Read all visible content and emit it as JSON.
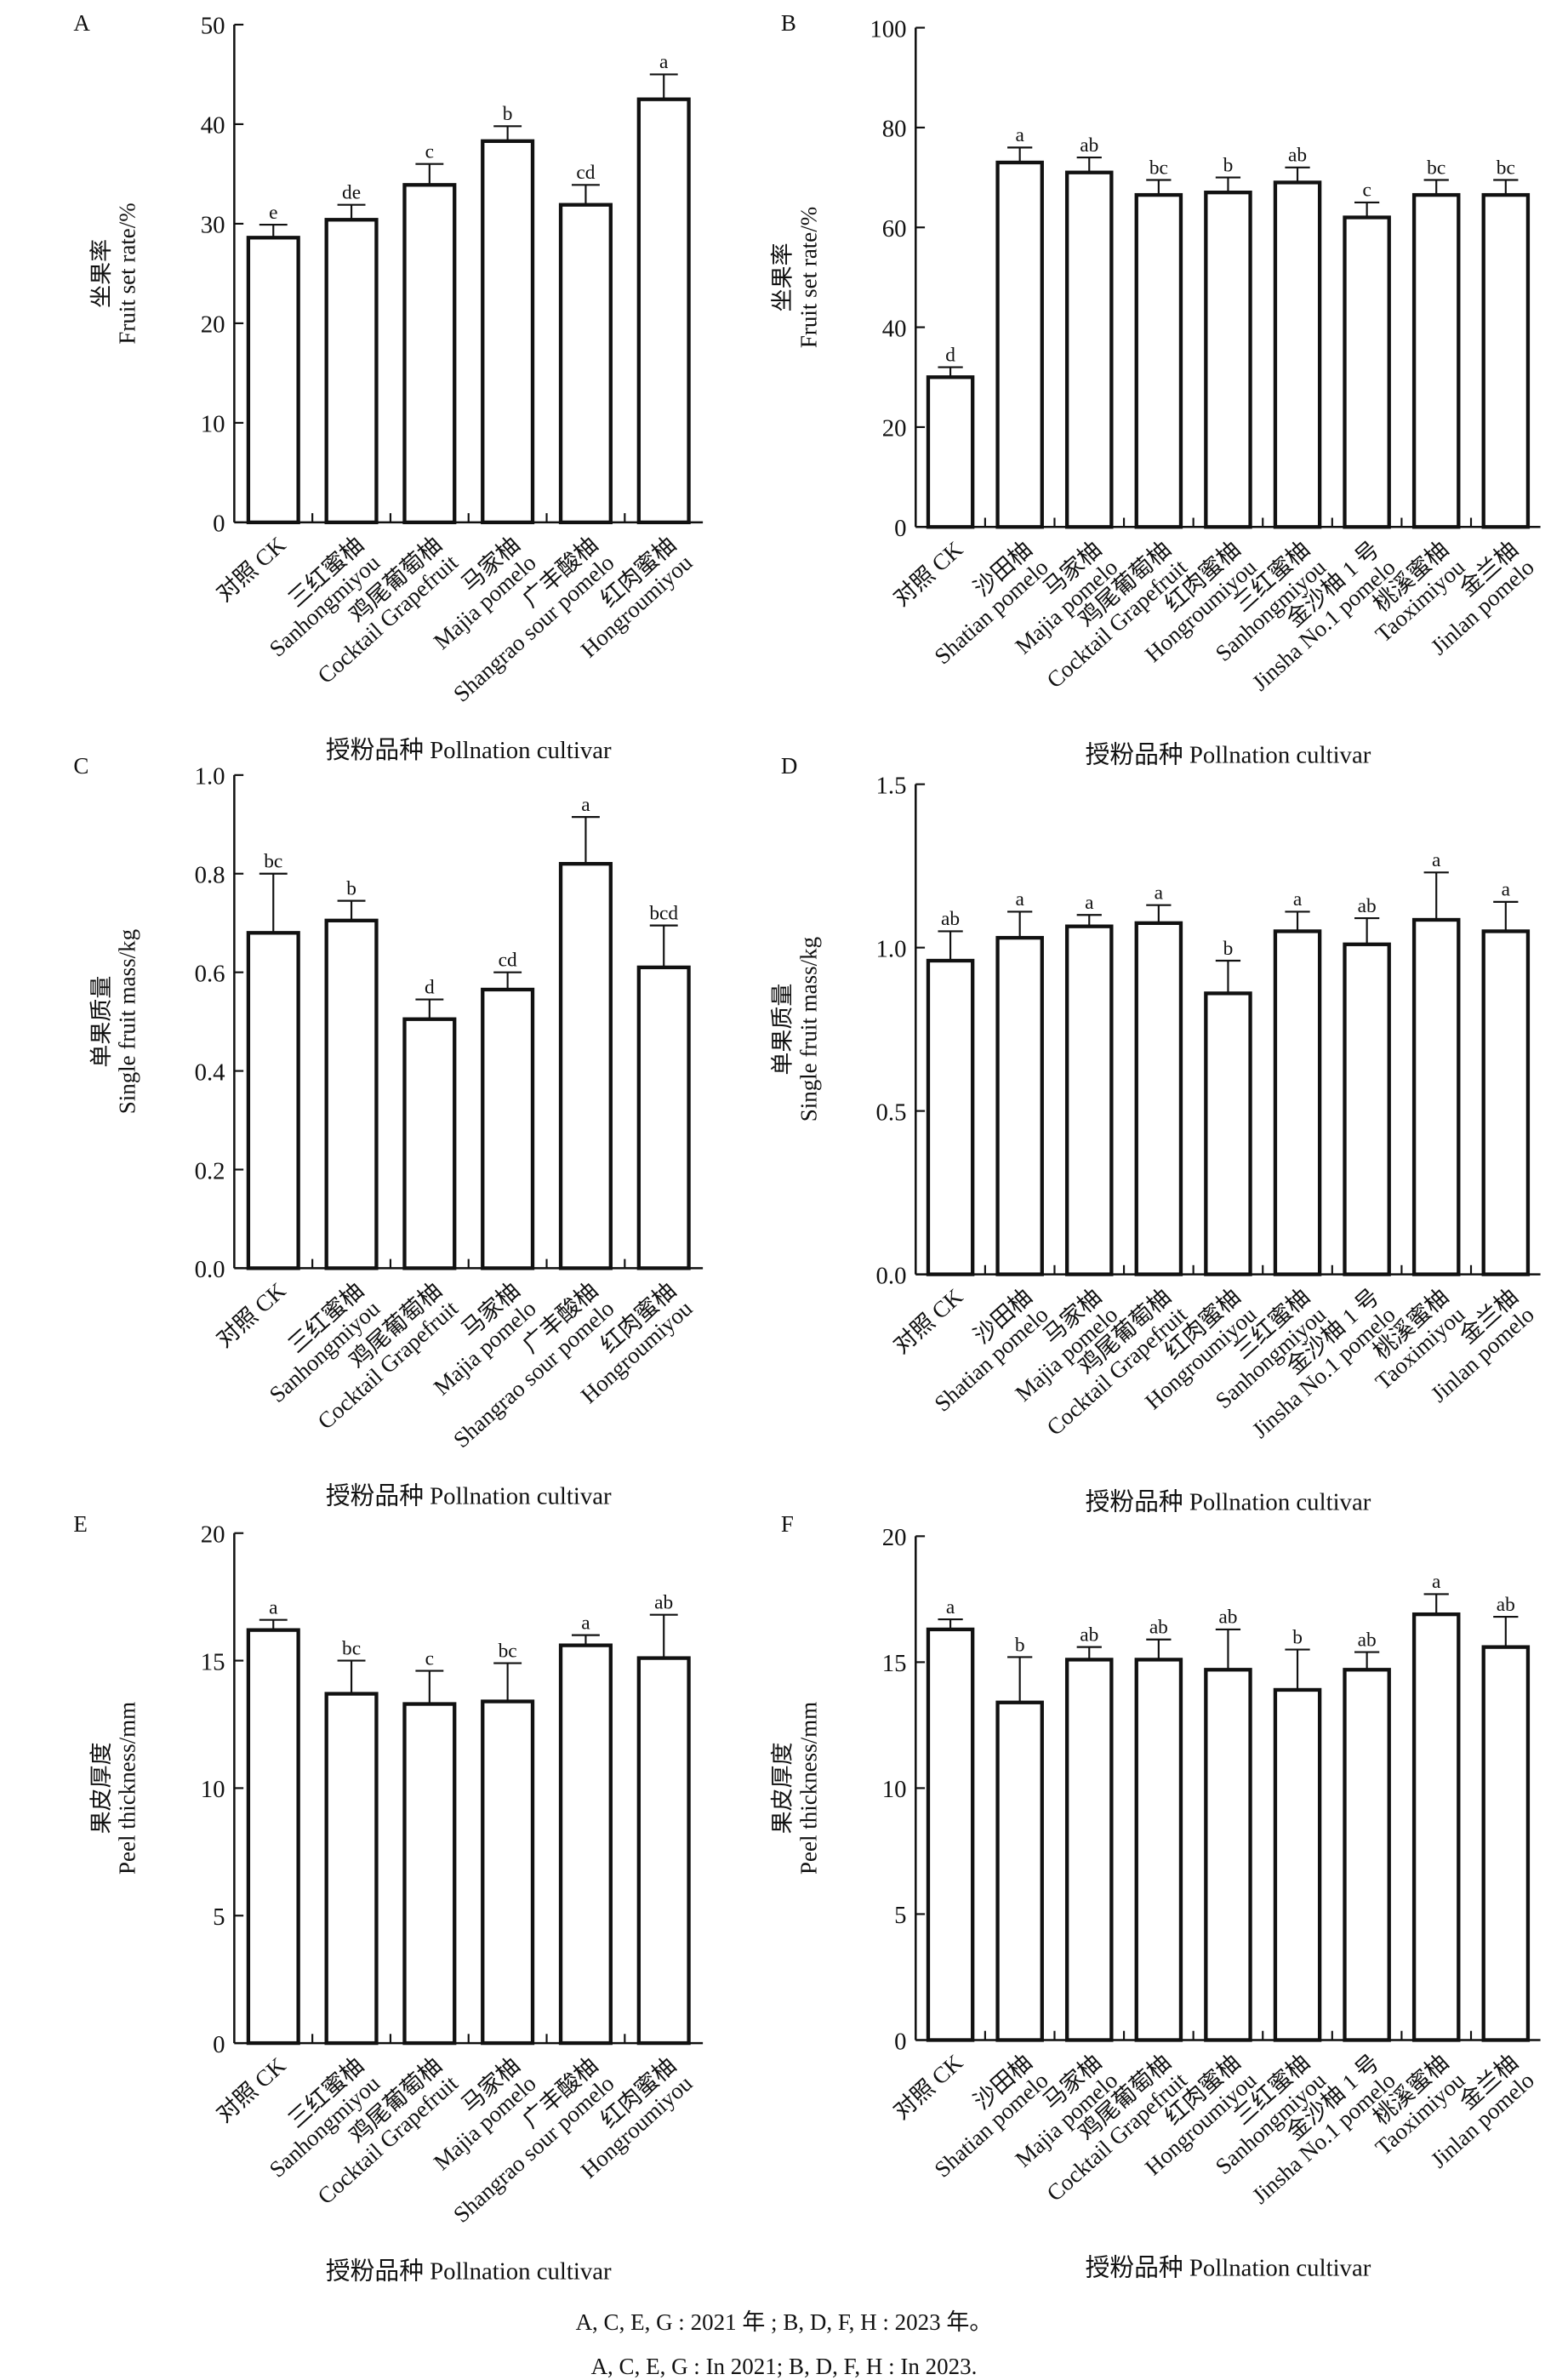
{
  "caption": {
    "line1": "A, C, E, G : 2021 年 ; B, D, F, H : 2023 年。",
    "line2": "A, C, E, G : In 2021; B, D, F, H : In 2023."
  },
  "chart_data": [
    {
      "panel": "A",
      "type": "bar",
      "ylabel_cn": "坐果率",
      "ylabel_en": "Fruit set rate/%",
      "xlabel": "授粉品种 Pollnation cultivar",
      "ylim": [
        0,
        50
      ],
      "yticks": [
        0,
        10,
        20,
        30,
        40,
        50
      ],
      "ytick_labels": [
        "0",
        "10",
        "20",
        "30",
        "40",
        "50"
      ],
      "categories": [
        {
          "cn": "对照 CK",
          "en": ""
        },
        {
          "cn": "三红蜜柚",
          "en": "Sanhongmiyou"
        },
        {
          "cn": "鸡尾葡萄柚",
          "en": "Cocktail Grapefruit"
        },
        {
          "cn": "马家柚",
          "en": "Majia pomelo"
        },
        {
          "cn": "广丰酸柚",
          "en": "Shangrao sour pomelo"
        },
        {
          "cn": "红肉蜜柚",
          "en": "Hongroumiyou"
        }
      ],
      "values": [
        28.6,
        30.4,
        33.9,
        38.3,
        31.9,
        42.5
      ],
      "error_upper": [
        29.9,
        31.9,
        36.0,
        39.8,
        33.9,
        45.0
      ],
      "letters": [
        "e",
        "de",
        "c",
        "b",
        "cd",
        "a"
      ]
    },
    {
      "panel": "B",
      "type": "bar",
      "ylabel_cn": "坐果率",
      "ylabel_en": "Fruit set rate/%",
      "xlabel": "授粉品种 Pollnation cultivar",
      "ylim": [
        0,
        100
      ],
      "yticks": [
        0,
        20,
        40,
        60,
        80,
        100
      ],
      "ytick_labels": [
        "0",
        "20",
        "40",
        "60",
        "80",
        "100"
      ],
      "categories": [
        {
          "cn": "对照 CK",
          "en": ""
        },
        {
          "cn": "沙田柚",
          "en": "Shatian pomelo"
        },
        {
          "cn": "马家柚",
          "en": "Majia pomelo"
        },
        {
          "cn": "鸡尾葡萄柚",
          "en": "Cocktail Grapefruit"
        },
        {
          "cn": "红肉蜜柚",
          "en": "Hongroumiyou"
        },
        {
          "cn": "三红蜜柚",
          "en": "Sanhongmiyou"
        },
        {
          "cn": "金沙柚 1 号",
          "en": "Jinsha No.1 pomelo"
        },
        {
          "cn": "桃溪蜜柚",
          "en": "Taoximiyou"
        },
        {
          "cn": "金兰柚",
          "en": "Jinlan pomelo"
        }
      ],
      "values": [
        30,
        73,
        71,
        66.5,
        67,
        69,
        62,
        66.5,
        66.5
      ],
      "error_upper": [
        32,
        76,
        74,
        69.5,
        70,
        72,
        65,
        69.5,
        69.5
      ],
      "letters": [
        "d",
        "a",
        "ab",
        "bc",
        "b",
        "ab",
        "c",
        "bc",
        "bc"
      ]
    },
    {
      "panel": "C",
      "type": "bar",
      "ylabel_cn": "单果质量",
      "ylabel_en": "Single fruit mass/kg",
      "xlabel": "授粉品种 Pollnation cultivar",
      "ylim": [
        0,
        1.0
      ],
      "yticks": [
        0,
        0.2,
        0.4,
        0.6,
        0.8,
        1.0
      ],
      "ytick_labels": [
        "0.0",
        "0.2",
        "0.4",
        "0.6",
        "0.8",
        "1.0"
      ],
      "categories": [
        {
          "cn": "对照 CK",
          "en": ""
        },
        {
          "cn": "三红蜜柚",
          "en": "Sanhongmiyou"
        },
        {
          "cn": "鸡尾葡萄柚",
          "en": "Cocktail Grapefruit"
        },
        {
          "cn": "马家柚",
          "en": "Majia pomelo"
        },
        {
          "cn": "广丰酸柚",
          "en": "Shangrao sour pomelo"
        },
        {
          "cn": "红肉蜜柚",
          "en": "Hongroumiyou"
        }
      ],
      "values": [
        0.68,
        0.705,
        0.505,
        0.565,
        0.82,
        0.61
      ],
      "error_upper": [
        0.8,
        0.745,
        0.545,
        0.6,
        0.915,
        0.695
      ],
      "letters": [
        "bc",
        "b",
        "d",
        "cd",
        "a",
        "bcd"
      ]
    },
    {
      "panel": "D",
      "type": "bar",
      "ylabel_cn": "单果质量",
      "ylabel_en": "Single fruit mass/kg",
      "xlabel": "授粉品种 Pollnation cultivar",
      "ylim": [
        0,
        1.5
      ],
      "yticks": [
        0,
        0.5,
        1.0,
        1.5
      ],
      "ytick_labels": [
        "0.0",
        "0.5",
        "1.0",
        "1.5"
      ],
      "categories": [
        {
          "cn": "对照 CK",
          "en": ""
        },
        {
          "cn": "沙田柚",
          "en": "Shatian pomelo"
        },
        {
          "cn": "马家柚",
          "en": "Majia pomelo"
        },
        {
          "cn": "鸡尾葡萄柚",
          "en": "Cocktail Grapefruit"
        },
        {
          "cn": "红肉蜜柚",
          "en": "Hongroumiyou"
        },
        {
          "cn": "三红蜜柚",
          "en": "Sanhongmiyou"
        },
        {
          "cn": "金沙柚 1 号",
          "en": "Jinsha No.1 pomelo"
        },
        {
          "cn": "桃溪蜜柚",
          "en": "Taoximiyou"
        },
        {
          "cn": "金兰柚",
          "en": "Jinlan pomelo"
        }
      ],
      "values": [
        0.96,
        1.03,
        1.065,
        1.075,
        0.86,
        1.05,
        1.01,
        1.085,
        1.05
      ],
      "error_upper": [
        1.05,
        1.11,
        1.1,
        1.13,
        0.96,
        1.11,
        1.09,
        1.23,
        1.14
      ],
      "letters": [
        "ab",
        "a",
        "a",
        "a",
        "b",
        "a",
        "ab",
        "a",
        "a"
      ]
    },
    {
      "panel": "E",
      "type": "bar",
      "ylabel_cn": "果皮厚度",
      "ylabel_en": "Peel thickness/mm",
      "xlabel": "授粉品种 Pollnation cultivar",
      "ylim": [
        0,
        20
      ],
      "yticks": [
        0,
        5,
        10,
        15,
        20
      ],
      "ytick_labels": [
        "0",
        "5",
        "10",
        "15",
        "20"
      ],
      "categories": [
        {
          "cn": "对照 CK",
          "en": ""
        },
        {
          "cn": "三红蜜柚",
          "en": "Sanhongmiyou"
        },
        {
          "cn": "鸡尾葡萄柚",
          "en": "Cocktail Grapefruit"
        },
        {
          "cn": "马家柚",
          "en": "Majia pomelo"
        },
        {
          "cn": "广丰酸柚",
          "en": "Shangrao sour pomelo"
        },
        {
          "cn": "红肉蜜柚",
          "en": "Hongroumiyou"
        }
      ],
      "values": [
        16.2,
        13.7,
        13.3,
        13.4,
        15.6,
        15.1
      ],
      "error_upper": [
        16.6,
        15.0,
        14.6,
        14.9,
        16.0,
        16.8
      ],
      "letters": [
        "a",
        "bc",
        "c",
        "bc",
        "a",
        "ab"
      ]
    },
    {
      "panel": "F",
      "type": "bar",
      "ylabel_cn": "果皮厚度",
      "ylabel_en": "Peel thickness/mm",
      "xlabel": "授粉品种 Pollnation cultivar",
      "ylim": [
        0,
        20
      ],
      "yticks": [
        0,
        5,
        10,
        15,
        20
      ],
      "ytick_labels": [
        "0",
        "5",
        "10",
        "15",
        "20"
      ],
      "categories": [
        {
          "cn": "对照 CK",
          "en": ""
        },
        {
          "cn": "沙田柚",
          "en": "Shatian pomelo"
        },
        {
          "cn": "马家柚",
          "en": "Majia pomelo"
        },
        {
          "cn": "鸡尾葡萄柚",
          "en": "Cocktail Grapefruit"
        },
        {
          "cn": "红肉蜜柚",
          "en": "Hongroumiyou"
        },
        {
          "cn": "三红蜜柚",
          "en": "Sanhongmiyou"
        },
        {
          "cn": "金沙柚 1 号",
          "en": "Jinsha No.1 pomelo"
        },
        {
          "cn": "桃溪蜜柚",
          "en": "Taoximiyou"
        },
        {
          "cn": "金兰柚",
          "en": "Jinlan pomelo"
        }
      ],
      "values": [
        16.3,
        13.4,
        15.1,
        15.1,
        14.7,
        13.9,
        14.7,
        16.9,
        15.6
      ],
      "error_upper": [
        16.7,
        15.2,
        15.6,
        15.9,
        16.3,
        15.5,
        15.4,
        17.7,
        16.8
      ],
      "letters": [
        "a",
        "b",
        "ab",
        "ab",
        "ab",
        "b",
        "ab",
        "a",
        "ab"
      ]
    }
  ]
}
